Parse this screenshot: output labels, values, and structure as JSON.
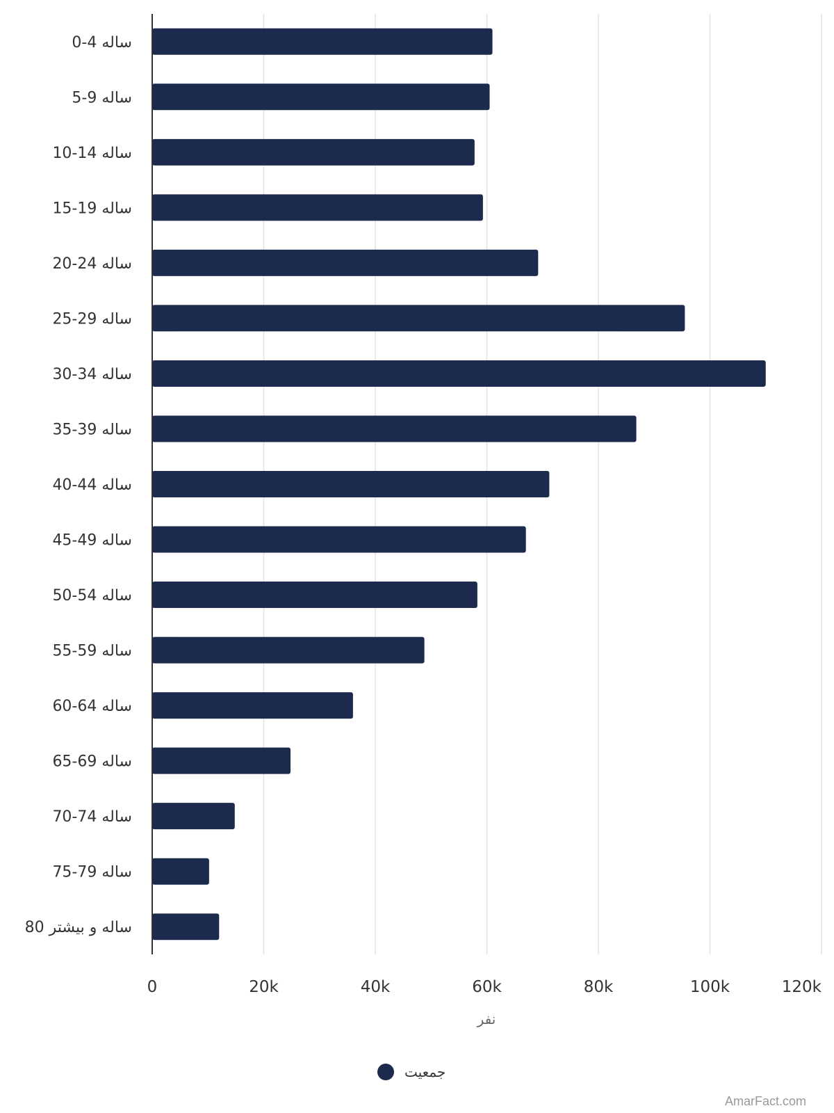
{
  "chart_data": {
    "type": "bar",
    "orientation": "horizontal",
    "categories": [
      "0-4 ساله",
      "5-9 ساله",
      "10-14 ساله",
      "15-19 ساله",
      "20-24 ساله",
      "25-29 ساله",
      "30-34 ساله",
      "35-39 ساله",
      "40-44 ساله",
      "45-49 ساله",
      "50-54 ساله",
      "55-59 ساله",
      "60-64 ساله",
      "65-69 ساله",
      "70-74 ساله",
      "75-79 ساله",
      "80 ساله و بیشتر"
    ],
    "series": [
      {
        "name": "جمعیت",
        "color": "#1c2a4d",
        "values": [
          61000,
          60500,
          57800,
          59300,
          69200,
          95500,
          110000,
          86800,
          71200,
          67000,
          58300,
          48800,
          36000,
          24800,
          14800,
          10200,
          12000
        ]
      }
    ],
    "xlabel": "نفر",
    "xticks": [
      "0",
      "20k",
      "40k",
      "60k",
      "80k",
      "100k",
      "120k"
    ],
    "xlim": [
      0,
      120000
    ],
    "grid": true,
    "legend_position": "bottom"
  },
  "credit": "AmarFact.com"
}
